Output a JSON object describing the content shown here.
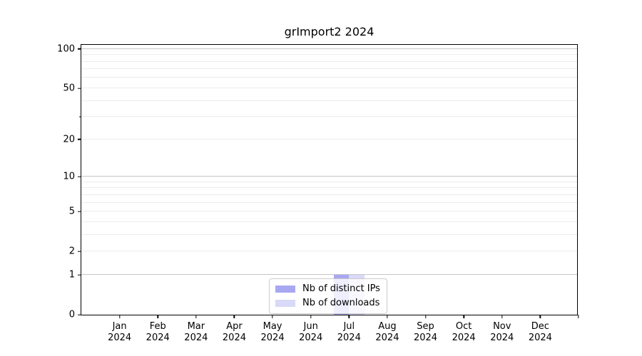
{
  "chart_data": {
    "type": "bar",
    "title": "grImport2 2024",
    "categories": [
      "Jan",
      "Feb",
      "Mar",
      "Apr",
      "May",
      "Jun",
      "Jul",
      "Aug",
      "Sep",
      "Oct",
      "Nov",
      "Dec"
    ],
    "year_label": "2024",
    "series": [
      {
        "name": "Nb of distinct IPs",
        "color": "#a8a8f2",
        "values": [
          0,
          0,
          0,
          0,
          0,
          0,
          1,
          0,
          0,
          0,
          0,
          0
        ]
      },
      {
        "name": "Nb of downloads",
        "color": "#d9d9f8",
        "values": [
          0,
          0,
          0,
          0,
          0,
          0,
          1,
          0,
          0,
          0,
          0,
          0
        ]
      }
    ],
    "yscale": "log1p",
    "ylim": [
      0,
      110
    ],
    "yticks": [
      100,
      50,
      20,
      10,
      5,
      2,
      1,
      0
    ],
    "yticks_minor": [
      30
    ],
    "gridlines_major": [
      1,
      10,
      100
    ],
    "gridlines_minor": [
      2,
      3,
      4,
      5,
      6,
      7,
      8,
      9,
      20,
      30,
      40,
      50,
      60,
      70,
      80,
      90
    ],
    "grid": true,
    "legend_position": "lower-center-inside",
    "colors": {
      "spine": "#000000",
      "gridline_major": "#c6c6c6",
      "gridline_minor": "#ececec",
      "background": "#ffffff"
    }
  }
}
